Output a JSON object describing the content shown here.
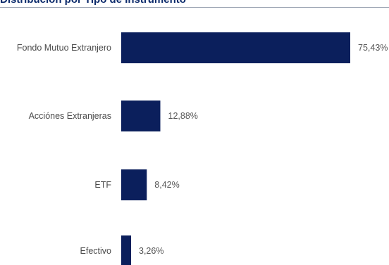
{
  "chart_data": {
    "type": "bar",
    "orientation": "horizontal",
    "title": "Distribución por Tipo de Instrumento",
    "categories": [
      "Fondo Mutuo Extranjero",
      "Acciónes Extranjeras",
      "ETF",
      "Efectivo"
    ],
    "values": [
      75.43,
      12.88,
      8.42,
      3.26
    ],
    "value_labels": [
      "75,43%",
      "12,88%",
      "8,42%",
      "3,26%"
    ],
    "bar_color": "#0b1f5c",
    "grid": false,
    "legend": "none"
  }
}
